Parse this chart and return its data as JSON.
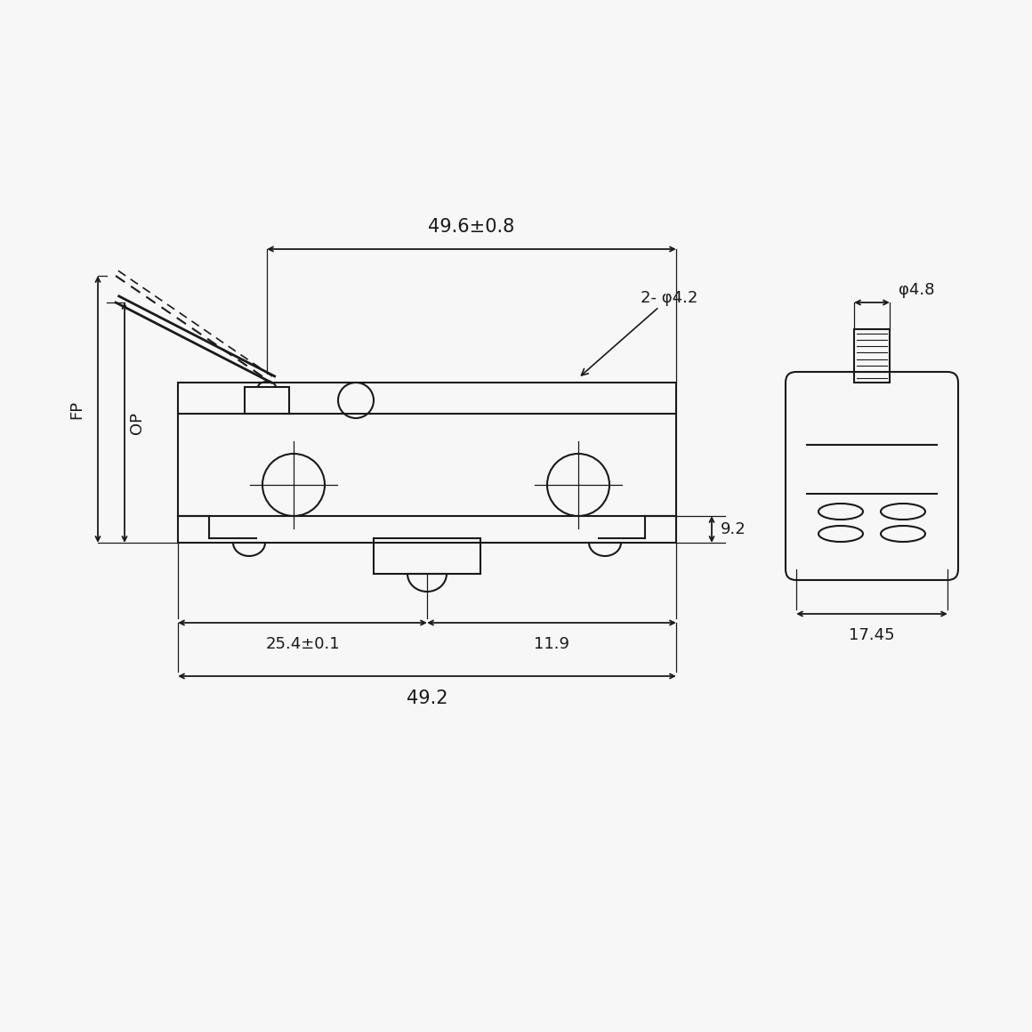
{
  "bg_color": "#f7f7f7",
  "line_color": "#1a1a1a",
  "lw": 1.5,
  "lw_thin": 0.9,
  "dim_49_6": "49.6±0.8",
  "dim_2phi42": "2- φ4.2",
  "dim_fp": "FP",
  "dim_op": "OP",
  "dim_9_2": "9.2",
  "dim_25_4": "25.4±0.1",
  "dim_11_9": "11.9",
  "dim_49_2": "49.2",
  "dim_phi48": "φ4.8",
  "dim_17_45": "17.45",
  "fs_large": 15,
  "fs_medium": 13
}
